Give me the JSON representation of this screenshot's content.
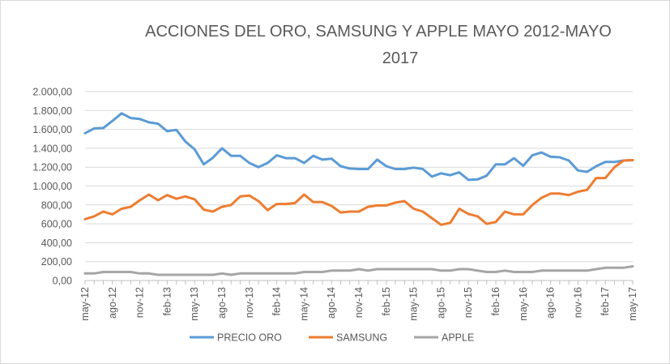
{
  "chart_data": {
    "type": "line",
    "title_lines": [
      "ACCIONES DEL ORO, SAMSUNG Y APPLE MAYO 2012-MAYO",
      "2017"
    ],
    "xlabel": "",
    "ylabel": "",
    "ylim": [
      0,
      2000
    ],
    "yticks": [
      "0,00",
      "200,00",
      "400,00",
      "600,00",
      "800,00",
      "1.000,00",
      "1.200,00",
      "1.400,00",
      "1.600,00",
      "1.800,00",
      "2.000,00"
    ],
    "xtick_labels": [
      "may-12",
      "ago-12",
      "nov-12",
      "feb-13",
      "may-13",
      "ago-13",
      "nov-13",
      "feb-14",
      "may-14",
      "ago-14",
      "nov-14",
      "feb-15",
      "may-15",
      "ago-15",
      "nov-15",
      "feb-16",
      "may-16",
      "ago-16",
      "nov-16",
      "feb-17",
      "may-17"
    ],
    "x": [
      "may-12",
      "jun-12",
      "jul-12",
      "ago-12",
      "sep-12",
      "oct-12",
      "nov-12",
      "dic-12",
      "ene-13",
      "feb-13",
      "mar-13",
      "abr-13",
      "may-13",
      "jun-13",
      "jul-13",
      "ago-13",
      "sep-13",
      "oct-13",
      "nov-13",
      "dic-13",
      "ene-14",
      "feb-14",
      "mar-14",
      "abr-14",
      "may-14",
      "jun-14",
      "jul-14",
      "ago-14",
      "sep-14",
      "oct-14",
      "nov-14",
      "dic-14",
      "ene-15",
      "feb-15",
      "mar-15",
      "abr-15",
      "may-15",
      "jun-15",
      "jul-15",
      "ago-15",
      "sep-15",
      "oct-15",
      "nov-15",
      "dic-15",
      "ene-16",
      "feb-16",
      "mar-16",
      "abr-16",
      "may-16",
      "jun-16",
      "jul-16",
      "ago-16",
      "sep-16",
      "oct-16",
      "nov-16",
      "dic-16",
      "ene-17",
      "feb-17",
      "mar-17",
      "abr-17",
      "may-17"
    ],
    "grid": true,
    "legend_position": "bottom",
    "series": [
      {
        "name": "PRECIO ORO",
        "color": "#5B9BD5",
        "values": [
          1560,
          1610,
          1615,
          1690,
          1770,
          1720,
          1710,
          1675,
          1660,
          1580,
          1595,
          1470,
          1390,
          1230,
          1300,
          1400,
          1320,
          1320,
          1245,
          1200,
          1245,
          1325,
          1295,
          1295,
          1245,
          1320,
          1280,
          1290,
          1210,
          1185,
          1180,
          1180,
          1280,
          1210,
          1180,
          1180,
          1195,
          1180,
          1100,
          1135,
          1115,
          1145,
          1065,
          1070,
          1110,
          1230,
          1230,
          1295,
          1215,
          1325,
          1355,
          1310,
          1305,
          1270,
          1165,
          1150,
          1210,
          1255,
          1255,
          1270,
          1275
        ]
      },
      {
        "name": "SAMSUNG",
        "color": "#ED7D31",
        "values": [
          650,
          680,
          730,
          700,
          760,
          780,
          850,
          910,
          850,
          905,
          865,
          890,
          860,
          750,
          730,
          780,
          800,
          890,
          900,
          840,
          745,
          810,
          810,
          820,
          910,
          830,
          830,
          790,
          720,
          730,
          730,
          780,
          795,
          795,
          825,
          840,
          760,
          730,
          660,
          590,
          610,
          760,
          705,
          680,
          600,
          620,
          730,
          700,
          700,
          800,
          875,
          920,
          920,
          905,
          940,
          960,
          1085,
          1085,
          1200,
          1270,
          1275
        ]
      },
      {
        "name": "APPLE",
        "color": "#A5A5A5",
        "values": [
          75,
          75,
          90,
          90,
          90,
          90,
          75,
          75,
          60,
          60,
          60,
          60,
          60,
          60,
          60,
          75,
          60,
          75,
          75,
          75,
          75,
          75,
          75,
          75,
          90,
          90,
          90,
          105,
          105,
          105,
          120,
          105,
          120,
          120,
          120,
          120,
          120,
          120,
          120,
          105,
          105,
          120,
          120,
          105,
          90,
          90,
          105,
          90,
          90,
          90,
          105,
          105,
          105,
          105,
          105,
          105,
          120,
          135,
          135,
          135,
          150
        ]
      }
    ]
  }
}
